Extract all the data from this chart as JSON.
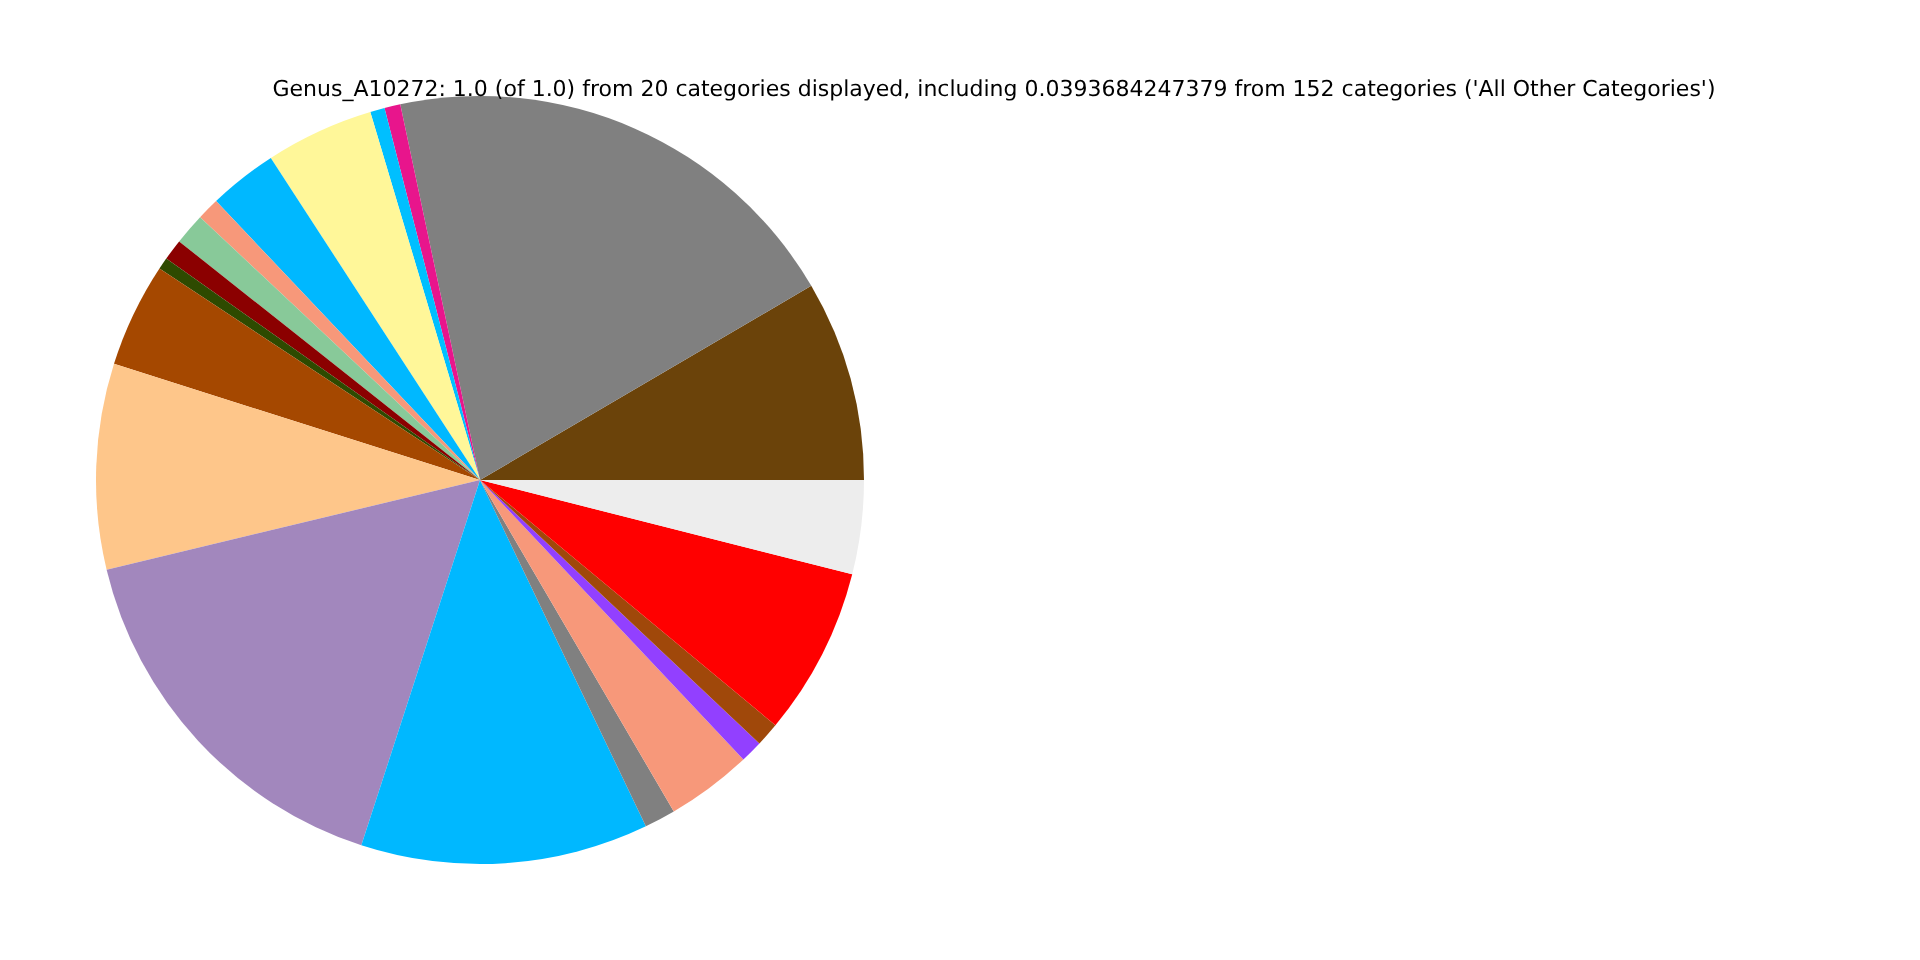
{
  "chart_data": {
    "type": "pie",
    "title": "Genus_A10272: 1.0 (of 1.0) from 20 categories displayed, including 0.0393684247379 from 152 categories ('All Other Categories')",
    "categories": [
      null,
      null,
      null,
      null,
      null,
      null,
      null,
      null,
      null,
      null,
      null,
      null,
      null,
      null,
      null,
      null,
      null,
      null,
      null,
      null
    ],
    "values": [
      8.44,
      19.89,
      0.67,
      0.61,
      4.56,
      2.89,
      0.94,
      1.33,
      0.89,
      0.5,
      4.39,
      8.64,
      16.25,
      12.11,
      1.31,
      3.61,
      0.94,
      1.0,
      7.08,
      3.95
    ],
    "colors": [
      "#6b430a",
      "#808080",
      "#e8158c",
      "#00bfff",
      "#fff799",
      "#00b8ff",
      "#f7987a",
      "#88c999",
      "#8b0000",
      "#2e4a00",
      "#a54800",
      "#fec68a",
      "#a287bd",
      "#00b8ff",
      "#808080",
      "#f7987a",
      "#9240ff",
      "#a0480a",
      "#ff0000",
      "#ededed"
    ]
  }
}
